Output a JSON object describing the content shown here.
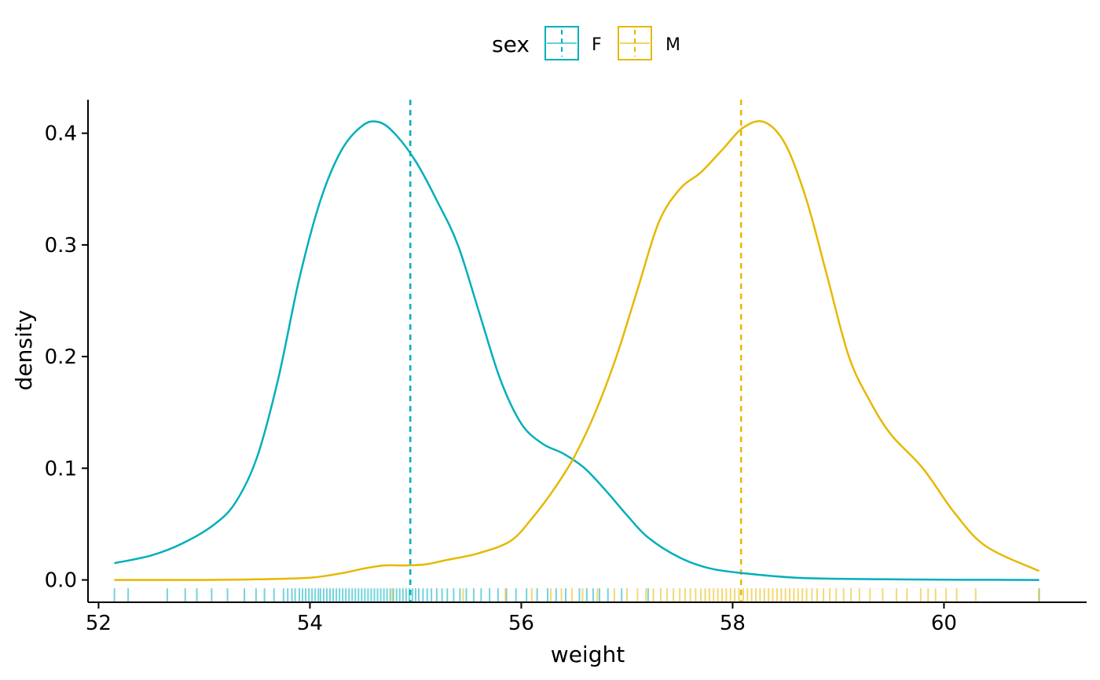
{
  "chart_data": {
    "type": "density",
    "xlabel": "weight",
    "ylabel": "density",
    "xlim": [
      51.9,
      61.35
    ],
    "ylim": [
      -0.02,
      0.43
    ],
    "x_ticks": [
      52,
      54,
      56,
      58,
      60
    ],
    "y_ticks": [
      0.0,
      0.1,
      0.2,
      0.3,
      0.4
    ],
    "x_tick_labels": [
      "52",
      "54",
      "56",
      "58",
      "60"
    ],
    "y_tick_labels": [
      "0.0",
      "0.1",
      "0.2",
      "0.3",
      "0.4"
    ],
    "grid": false,
    "legend": {
      "title": "sex",
      "position": "top",
      "entries": [
        "F",
        "M"
      ]
    },
    "series": [
      {
        "name": "F",
        "color": "#00AFBB",
        "mean": 54.95,
        "x": [
          52.15,
          52.5,
          52.8,
          53.1,
          53.3,
          53.5,
          53.7,
          53.9,
          54.1,
          54.3,
          54.5,
          54.65,
          54.8,
          55.0,
          55.2,
          55.4,
          55.6,
          55.8,
          56.0,
          56.2,
          56.4,
          56.6,
          56.8,
          57.0,
          57.2,
          57.5,
          57.8,
          58.2,
          58.6,
          59.0,
          59.5,
          60.0,
          60.5,
          60.9
        ],
        "y": [
          0.015,
          0.022,
          0.033,
          0.05,
          0.07,
          0.11,
          0.18,
          0.27,
          0.34,
          0.385,
          0.407,
          0.41,
          0.4,
          0.375,
          0.34,
          0.3,
          0.24,
          0.18,
          0.14,
          0.122,
          0.113,
          0.1,
          0.08,
          0.058,
          0.038,
          0.02,
          0.01,
          0.005,
          0.002,
          0.001,
          0.0005,
          0.0002,
          0.0001,
          0.0
        ]
      },
      {
        "name": "M",
        "color": "#E7B800",
        "mean": 58.08,
        "x": [
          52.15,
          53.0,
          53.5,
          54.0,
          54.3,
          54.5,
          54.7,
          54.9,
          55.1,
          55.3,
          55.6,
          55.9,
          56.1,
          56.3,
          56.5,
          56.7,
          56.9,
          57.1,
          57.3,
          57.5,
          57.7,
          57.9,
          58.1,
          58.3,
          58.5,
          58.7,
          58.9,
          59.1,
          59.3,
          59.5,
          59.8,
          60.1,
          60.4,
          60.9
        ],
        "y": [
          0.0,
          0.0,
          0.0005,
          0.002,
          0.006,
          0.01,
          0.013,
          0.013,
          0.014,
          0.018,
          0.024,
          0.035,
          0.055,
          0.08,
          0.11,
          0.15,
          0.2,
          0.26,
          0.32,
          0.35,
          0.365,
          0.385,
          0.405,
          0.41,
          0.39,
          0.34,
          0.27,
          0.2,
          0.16,
          0.13,
          0.1,
          0.06,
          0.03,
          0.008
        ]
      }
    ],
    "rug": {
      "F": [
        52.15,
        52.28,
        52.65,
        52.82,
        52.93,
        53.07,
        53.22,
        53.38,
        53.49,
        53.57,
        53.66,
        53.75,
        53.79,
        53.83,
        53.86,
        53.9,
        53.93,
        53.96,
        53.99,
        54.02,
        54.05,
        54.08,
        54.1,
        54.13,
        54.16,
        54.19,
        54.22,
        54.25,
        54.28,
        54.31,
        54.34,
        54.37,
        54.4,
        54.43,
        54.46,
        54.49,
        54.52,
        54.55,
        54.58,
        54.61,
        54.64,
        54.67,
        54.7,
        54.73,
        54.76,
        54.79,
        54.82,
        54.85,
        54.88,
        54.91,
        54.94,
        54.97,
        55.0,
        55.03,
        55.07,
        55.11,
        55.15,
        55.2,
        55.25,
        55.3,
        55.36,
        55.42,
        55.48,
        55.55,
        55.62,
        55.7,
        55.78,
        55.86,
        55.95,
        56.05,
        56.15,
        56.25,
        56.33,
        56.42,
        56.55,
        56.62,
        56.68,
        56.74,
        56.82,
        56.95,
        57.2,
        60.9
      ],
      "M": [
        54.78,
        55.45,
        55.85,
        56.1,
        56.28,
        56.38,
        56.48,
        56.58,
        56.72,
        56.88,
        57.0,
        57.1,
        57.18,
        57.25,
        57.32,
        57.38,
        57.44,
        57.5,
        57.55,
        57.6,
        57.65,
        57.7,
        57.74,
        57.78,
        57.82,
        57.86,
        57.9,
        57.94,
        57.98,
        58.02,
        58.06,
        58.1,
        58.14,
        58.18,
        58.22,
        58.26,
        58.3,
        58.34,
        58.38,
        58.42,
        58.46,
        58.5,
        58.54,
        58.58,
        58.62,
        58.66,
        58.7,
        58.75,
        58.8,
        58.86,
        58.92,
        58.98,
        59.05,
        59.12,
        59.2,
        59.3,
        59.42,
        59.55,
        59.65,
        59.78,
        59.85,
        59.92,
        60.02,
        60.12,
        60.3,
        60.9
      ]
    }
  }
}
